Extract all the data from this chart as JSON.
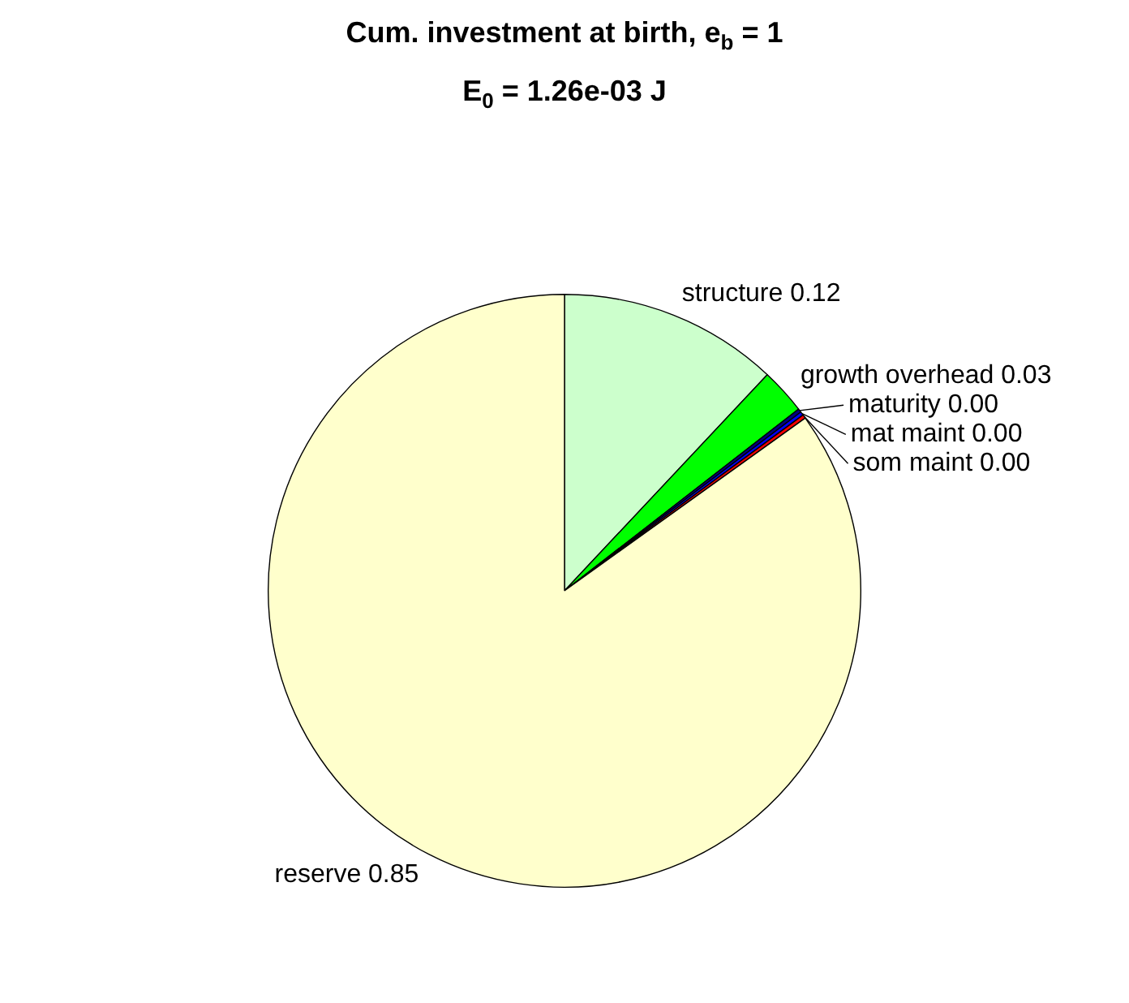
{
  "chart_data": {
    "type": "pie",
    "title": "Cum. investment at birth, e$_{b}$ = 1",
    "subtitle": "E$_{0}$ = 1.26e-03 J",
    "categories": [
      "structure",
      "growth overhead",
      "maturity",
      "mat maint",
      "som maint",
      "reserve"
    ],
    "values": [
      0.12,
      0.025,
      0.002,
      0.002,
      0.002,
      0.849
    ],
    "value_labels": [
      "0.12",
      "0.03",
      "0.00",
      "0.00",
      "0.00",
      "0.85"
    ],
    "colors": [
      "#ccffcc",
      "#00ff00",
      "#000080",
      "#0000ff",
      "#ff0000",
      "#ffffcc"
    ],
    "legend": false
  }
}
